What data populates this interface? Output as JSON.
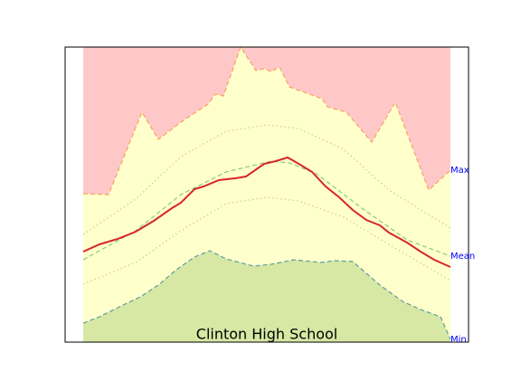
{
  "chart_data": {
    "type": "area",
    "title": "Clinton High School",
    "xlim": [
      -20,
      426
    ],
    "ylim": [
      0,
      326
    ],
    "series": [
      {
        "name": "Max",
        "color": "#f4a460",
        "fill_above": "#ffc8c8",
        "fill_below": "#ffffcc",
        "style": "dashed",
        "x": [
          0,
          28,
          65,
          83,
          108,
          138,
          146,
          155,
          174,
          191,
          200,
          208,
          217,
          228,
          236,
          242,
          264,
          270,
          291,
          319,
          345,
          382,
          406
        ],
        "values": [
          164,
          163,
          254,
          224,
          243,
          263,
          274,
          272,
          326,
          300,
          302,
          299,
          304,
          282,
          279,
          277,
          269,
          260,
          254,
          221,
          265,
          168,
          190
        ]
      },
      {
        "name": "Min",
        "color": "#5f9ea0",
        "fill_below": "#d6e8a4",
        "style": "dashed",
        "x": [
          0,
          18,
          38,
          63,
          83,
          103,
          123,
          140,
          158,
          188,
          208,
          233,
          263,
          278,
          298,
          328,
          353,
          373,
          395,
          406
        ],
        "values": [
          21,
          28,
          38,
          50,
          63,
          80,
          94,
          101,
          92,
          84,
          86,
          91,
          88,
          90,
          89,
          63,
          45,
          36,
          28,
          3
        ]
      },
      {
        "color": "#cccc88",
        "style": "dotted",
        "x": [
          0,
          58,
          108,
          158,
          203,
          238,
          288,
          338,
          406
        ],
        "values": [
          119,
          158,
          205,
          233,
          240,
          236,
          213,
          168,
          126
        ]
      },
      {
        "color": "#cccc88",
        "style": "dotted",
        "x": [
          0,
          58,
          108,
          158,
          203,
          238,
          288,
          338,
          406
        ],
        "values": [
          64,
          88,
          123,
          153,
          160,
          156,
          138,
          108,
          68
        ]
      },
      {
        "name": "Mean",
        "color": "#88cc77",
        "style": "dashed",
        "x": [
          0,
          58,
          108,
          158,
          208,
          228,
          258,
          308,
          358,
          406
        ],
        "values": [
          91,
          123,
          163,
          188,
          200,
          198,
          186,
          148,
          113,
          95
        ]
      },
      {
        "color": "#d62728",
        "style": "solid",
        "x": [
          0,
          18,
          38,
          58,
          78,
          98,
          108,
          123,
          133,
          150,
          168,
          180,
          200,
          213,
          226,
          240,
          253,
          268,
          283,
          298,
          313,
          328,
          338,
          358,
          373,
          388,
          406
        ],
        "values": [
          100,
          108,
          114,
          122,
          134,
          148,
          154,
          169,
          172,
          179,
          181,
          183,
          197,
          200,
          204,
          196,
          188,
          172,
          160,
          146,
          135,
          129,
          121,
          110,
          100,
          91,
          83
        ]
      }
    ],
    "label_color": "#0000ff"
  }
}
